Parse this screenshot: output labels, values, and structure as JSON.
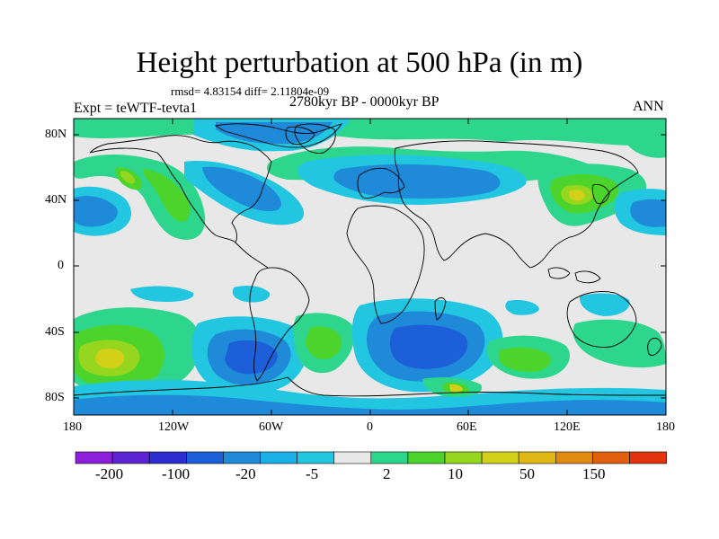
{
  "title": "Height perturbation at 500 hPa (in m)",
  "stats": "rmsd= 4.83154 diff= 2.11804e-09",
  "period": "2780kyr BP - 0000kyr BP",
  "experiment": "Expt = teWTF-tevta1",
  "season": "ANN",
  "lat_ticks": [
    "80N",
    "40N",
    "0",
    "40S",
    "80S"
  ],
  "lon_ticks": [
    "180",
    "120W",
    "60W",
    "0",
    "60E",
    "120E",
    "180"
  ],
  "colorbar": {
    "colors": [
      "#8c1fd9",
      "#5a25d0",
      "#2d2dcf",
      "#1c5fd8",
      "#1f8ad8",
      "#1ab0e6",
      "#22c6e0",
      "#e8e8e8",
      "#2ed68d",
      "#4cd42d",
      "#96d61e",
      "#d2d018",
      "#e0b815",
      "#e08a0f",
      "#e0600e",
      "#e0330e"
    ],
    "labels": [
      "-200",
      "-100",
      "-20",
      "-5",
      "2",
      "10",
      "50",
      "150"
    ]
  }
}
